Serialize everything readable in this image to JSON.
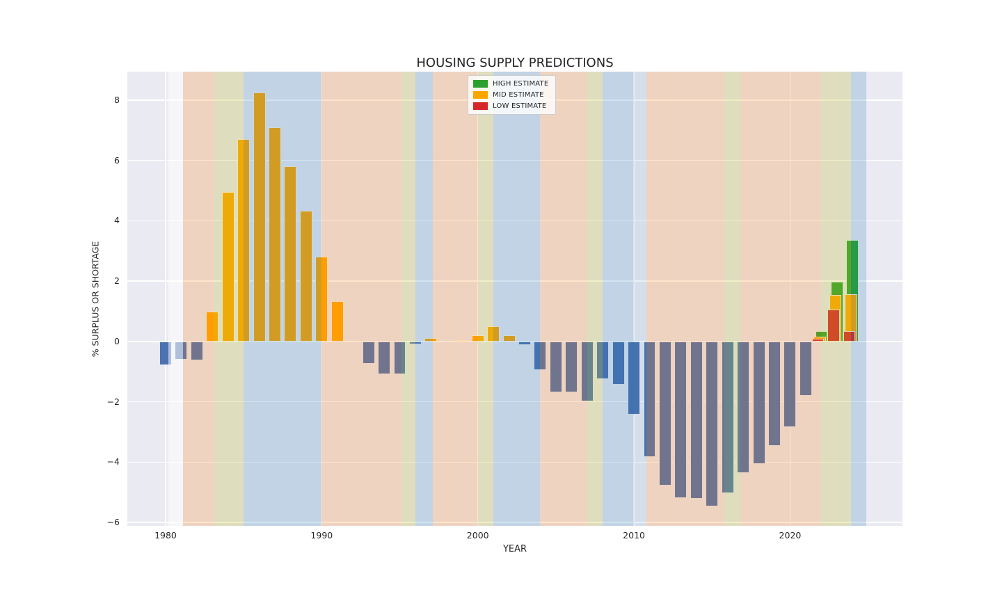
{
  "title": "HOUSING SUPPLY PREDICTIONS",
  "axes": {
    "xlabel": "YEAR",
    "ylabel": "% SURPLUS OR SHORTAGE",
    "ytick_labels": [
      "8",
      "6",
      "4",
      "2",
      "0",
      "−2",
      "−4",
      "−6"
    ],
    "xtick_labels": [
      "1980",
      "1990",
      "2000",
      "2010",
      "2020"
    ]
  },
  "legend": [
    {
      "label": "HIGH ESTIMATE",
      "color": "#2ca02c"
    },
    {
      "label": "MID ESTIMATE",
      "color": "#ffa500"
    },
    {
      "label": "LOW ESTIMATE",
      "color": "#d62728"
    }
  ],
  "colors": {
    "surplus_bar": "#ffa500",
    "shortage_bar": "#4c72b0",
    "high_bar": "#2ca02c",
    "mid_bar": "#ffa500",
    "low_bar": "#d62728",
    "plot_bg": "#eaeaf2",
    "grid": "#ffffff",
    "text": "#262626"
  },
  "chart_data": {
    "type": "bar",
    "title": "HOUSING SUPPLY PREDICTIONS",
    "xlabel": "YEAR",
    "ylabel": "% SURPLUS OR SHORTAGE",
    "xlim": [
      1977.55,
      2027.2
    ],
    "ylim": [
      -6.11,
      8.94
    ],
    "xticks": [
      1980,
      1990,
      2000,
      2010,
      2020
    ],
    "yticks": [
      8,
      6,
      4,
      2,
      0,
      -2,
      -4,
      -6
    ],
    "grid": true,
    "legend_position": "upper center",
    "historical": {
      "years": [
        1980,
        1981,
        1982,
        1983,
        1984,
        1985,
        1986,
        1987,
        1988,
        1989,
        1990,
        1991,
        1992,
        1993,
        1994,
        1995,
        1996,
        1997,
        1998,
        1999,
        2000,
        2001,
        2002,
        2003,
        2004,
        2005,
        2006,
        2007,
        2008,
        2009,
        2010,
        2011,
        2012,
        2013,
        2014,
        2015,
        2016,
        2017,
        2018,
        2019,
        2020,
        2021
      ],
      "values": [
        -0.78,
        -0.6,
        -0.62,
        1.0,
        4.95,
        6.7,
        8.25,
        7.1,
        5.8,
        4.33,
        2.8,
        1.33,
        0.0,
        -0.74,
        -1.09,
        -1.08,
        -0.09,
        0.12,
        0.0,
        0.05,
        0.21,
        0.51,
        0.21,
        -0.11,
        -0.95,
        -1.69,
        -1.69,
        -1.98,
        -1.25,
        -1.42,
        -2.42,
        -3.82,
        -4.78,
        -5.18,
        -5.21,
        -5.47,
        -5.03,
        -4.37,
        -4.05,
        -3.45,
        -2.83,
        -1.8
      ]
    },
    "predictions": {
      "years": [
        2022,
        2023,
        2024
      ],
      "series": [
        {
          "name": "HIGH ESTIMATE",
          "color": "#2ca02c",
          "values": [
            0.35,
            1.98,
            3.36
          ]
        },
        {
          "name": "MID ESTIMATE",
          "color": "#ffa500",
          "values": [
            0.15,
            1.54,
            1.56
          ]
        },
        {
          "name": "LOW ESTIMATE",
          "color": "#d62728",
          "values": [
            0.08,
            1.06,
            0.35
          ]
        }
      ]
    },
    "background_bands": [
      {
        "from": 1980.2,
        "to": 1981.1,
        "color": "white"
      },
      {
        "from": 1981.1,
        "to": 1983.1,
        "color": "peach"
      },
      {
        "from": 1983.1,
        "to": 1985,
        "color": "olive"
      },
      {
        "from": 1985,
        "to": 1990,
        "color": "blue"
      },
      {
        "from": 1990,
        "to": 1995.1,
        "color": "peach"
      },
      {
        "from": 1995.1,
        "to": 1996,
        "color": "olive"
      },
      {
        "from": 1996,
        "to": 1997.1,
        "color": "blue"
      },
      {
        "from": 1997.1,
        "to": 2000,
        "color": "peach"
      },
      {
        "from": 2000,
        "to": 2001,
        "color": "olive"
      },
      {
        "from": 2001,
        "to": 2004,
        "color": "blue"
      },
      {
        "from": 2004,
        "to": 2007,
        "color": "peach"
      },
      {
        "from": 2007,
        "to": 2008,
        "color": "olive"
      },
      {
        "from": 2008,
        "to": 2010,
        "color": "blue"
      },
      {
        "from": 2010,
        "to": 2010.8,
        "color": "lightblue"
      },
      {
        "from": 2010.8,
        "to": 2015.8,
        "color": "peach"
      },
      {
        "from": 2015.8,
        "to": 2016.8,
        "color": "olive"
      },
      {
        "from": 2016.8,
        "to": 2020,
        "color": "peach"
      },
      {
        "from": 2020,
        "to": 2022,
        "color": "peach"
      },
      {
        "from": 2022,
        "to": 2023.9,
        "color": "olive"
      },
      {
        "from": 2023.9,
        "to": 2024.9,
        "color": "blue"
      }
    ],
    "band_fill": {
      "white": "rgba(255,255,255,0.55)",
      "peach": "rgba(255,127,14,0.21)",
      "olive": "rgba(188,189,34,0.25)",
      "blue": "rgba(31,119,180,0.2)",
      "lightblue": "rgba(31,119,180,0.1)"
    }
  }
}
